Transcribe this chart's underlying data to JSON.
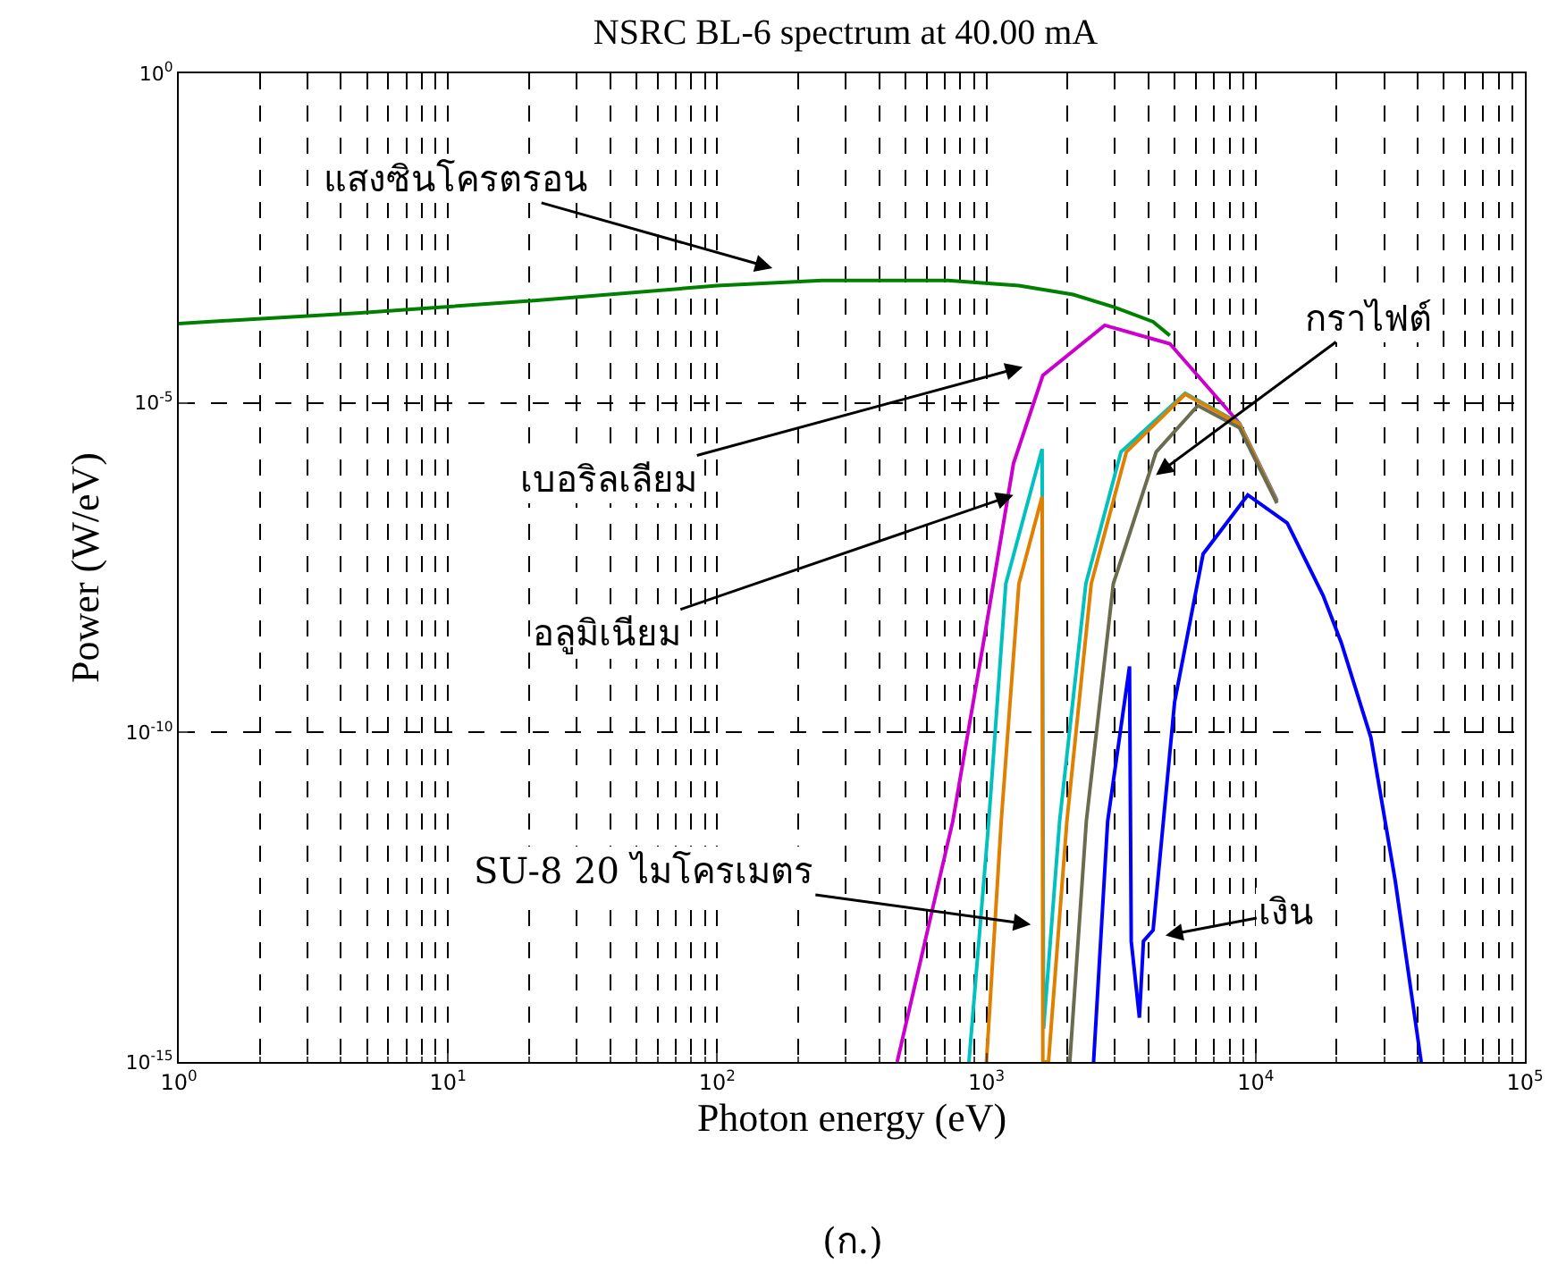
{
  "chart_data": {
    "type": "line",
    "title": "NSRC BL-6 spectrum at 40.00 mA",
    "xlabel": "Photon energy (eV)",
    "ylabel": "Power (W/eV)",
    "log": "xy",
    "grid": true,
    "marker": "none",
    "line_style": "solid",
    "xlim": [
      1,
      100000
    ],
    "ylim": [
      1e-15,
      1
    ],
    "xticks": [
      {
        "value": 1,
        "label": "10$^{0}$"
      },
      {
        "value": 10,
        "label": "10$^{1}$"
      },
      {
        "value": 100,
        "label": "10$^{2}$"
      },
      {
        "value": 1000,
        "label": "10$^{3}$"
      },
      {
        "value": 10000,
        "label": "10$^{4}$"
      },
      {
        "value": 100000,
        "label": "10$^{5}$"
      }
    ],
    "yticks": [
      {
        "value": 1e-15,
        "label": "10$^{-15}$"
      },
      {
        "value": 1e-10,
        "label": "10$^{-10}$"
      },
      {
        "value": 1e-05,
        "label": "10$^{-5}$"
      },
      {
        "value": 1,
        "label": "10$^{0}$"
      }
    ],
    "series": [
      {
        "color": "#008000",
        "x": [
          1,
          4.6,
          21.4,
          100,
          245,
          720,
          1320,
          2100,
          3000,
          4160,
          4800
        ],
        "values": [
          0.00016,
          0.00023,
          0.00036,
          0.0006,
          0.00072,
          0.00072,
          0.0006,
          0.00044,
          0.00028,
          0.00017,
          0.000105
        ]
      },
      {
        "color": "#cc00cc",
        "x": [
          466,
          750,
          975,
          1260,
          1620,
          2750,
          4800,
          8700,
          12000
        ],
        "values": [
          1e-15,
          4.5e-12,
          2.3e-09,
          1.2e-06,
          2.6e-05,
          0.00015,
          7.9e-05,
          4.9e-06,
          3.3e-07
        ]
      },
      {
        "color": "#00c0c0",
        "x": [
          861,
          1020,
          1180,
          1610,
          1630,
          1870,
          2340,
          3160,
          5470,
          8700,
          12000
        ],
        "values": [
          1e-15,
          4.5e-12,
          1.8e-08,
          2e-06,
          3.2e-15,
          4.5e-12,
          1.8e-08,
          1.8e-06,
          1.4e-05,
          4.9e-06,
          3.2e-07
        ]
      },
      {
        "color": "#e08000",
        "x": [
          1000,
          1135,
          1320,
          1610,
          1620,
          1700,
          1990,
          2450,
          3310,
          5470,
          8700,
          12000
        ],
        "values": [
          1e-15,
          4.5e-12,
          1.8e-08,
          3.8e-07,
          1e-15,
          1e-15,
          4.5e-12,
          1.8e-08,
          1.8e-06,
          1.35e-05,
          4.8e-06,
          3.1e-07
        ]
      },
      {
        "color": "#6b6b4f",
        "x": [
          2040,
          2350,
          2960,
          4270,
          6100,
          8700,
          12000
        ],
        "values": [
          1e-15,
          4.5e-12,
          1.8e-08,
          1.8e-06,
          9.1e-06,
          4.2e-06,
          3e-07
        ]
      },
      {
        "color": "#0000ff",
        "x": [
          2500,
          2820,
          3400,
          3450,
          3700,
          3830,
          4160,
          5000,
          6380,
          9350,
          13100,
          17800,
          20800,
          26800,
          33000,
          41200
        ],
        "values": [
          1e-15,
          4.5e-12,
          1e-09,
          6.8e-14,
          4.7e-15,
          6.8e-14,
          1e-13,
          2.9e-10,
          5.1e-08,
          4e-07,
          1.5e-07,
          1.2e-08,
          2.3e-09,
          8.3e-11,
          5.6e-13,
          1e-15
        ]
      }
    ],
    "annotations": [
      "แสงซินโครตรอน",
      "เบอริลเลียม",
      {
        "text": "อลูมิเนียม",
        "x": 1260,
        "y": 4e-07
      },
      {
        "text": "กราไฟต์",
        "x": 4260,
        "y": 8e-07
      },
      "SU-8 20 ไมโครเมตร",
      "เงิน",
      "(ก.)"
    ]
  }
}
